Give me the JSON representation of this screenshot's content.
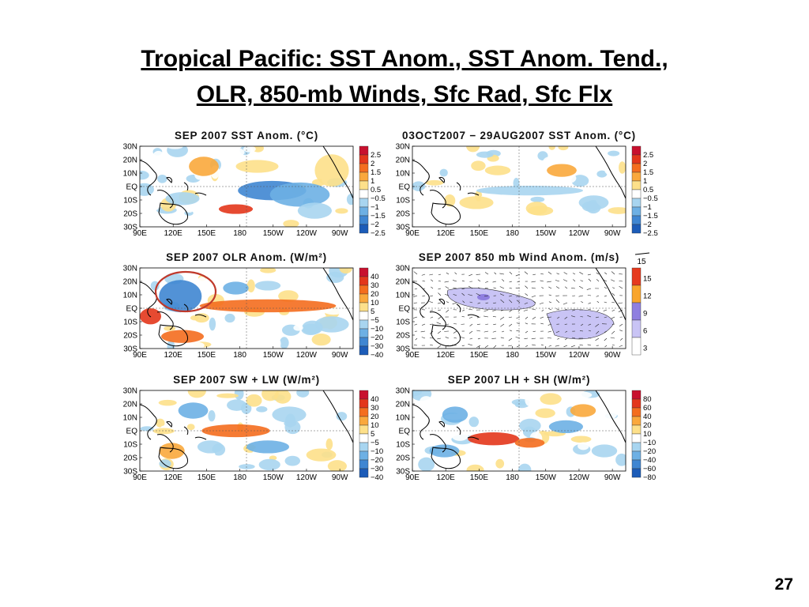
{
  "slide": {
    "title_line1": "Tropical Pacific: SST Anom., SST Anom. Tend.,",
    "title_line2": "OLR, 850-mb Winds, Sfc Rad, Sfc Flx",
    "page_number": "27"
  },
  "axes": {
    "lat_labels": [
      "30N",
      "20N",
      "10N",
      "EQ",
      "10S",
      "20S",
      "30S"
    ],
    "lon_labels": [
      "90E",
      "120E",
      "150E",
      "180",
      "150W",
      "120W",
      "90W"
    ]
  },
  "panels": [
    {
      "id": "sst",
      "title": "SEP 2007 SST Anom. (°C)",
      "colorbar": [
        "2.5",
        "2",
        "1.5",
        "1",
        "0.5",
        "−0.5",
        "−1",
        "−1.5",
        "−2",
        "−2.5"
      ],
      "colors": [
        "#c8102e",
        "#e3361b",
        "#f46d1e",
        "#faa83c",
        "#fde08a",
        "#ffffff",
        "#a8d5f0",
        "#6db0e4",
        "#3f86d2",
        "#1c5cb8"
      ]
    },
    {
      "id": "sst-tend",
      "title": "03OCT2007 − 29AUG2007 SST Anom. (°C)",
      "colorbar": [
        "2.5",
        "2",
        "1.5",
        "1",
        "0.5",
        "−0.5",
        "−1",
        "−1.5",
        "−2",
        "−2.5"
      ],
      "colors": [
        "#c8102e",
        "#e3361b",
        "#f46d1e",
        "#faa83c",
        "#fde08a",
        "#ffffff",
        "#a8d5f0",
        "#6db0e4",
        "#3f86d2",
        "#1c5cb8"
      ]
    },
    {
      "id": "olr",
      "title": "SEP 2007 OLR Anom. (W/m²)",
      "colorbar": [
        "40",
        "30",
        "20",
        "10",
        "5",
        "−5",
        "−10",
        "−20",
        "−30",
        "−40"
      ],
      "colors": [
        "#c8102e",
        "#e3361b",
        "#f46d1e",
        "#faa83c",
        "#fde08a",
        "#ffffff",
        "#a8d5f0",
        "#6db0e4",
        "#3f86d2",
        "#1c5cb8"
      ]
    },
    {
      "id": "wind",
      "title": "SEP 2007 850 mb Wind Anom. (m/s)",
      "reference_vector": "15",
      "colorbar": [
        "15",
        "12",
        "9",
        "6",
        "3"
      ],
      "colors": [
        "#e63a1e",
        "#f9a52c",
        "#8f7fe0",
        "#c9c4f5",
        "#ffffff"
      ]
    },
    {
      "id": "rad",
      "title": "SEP 2007 SW + LW (W/m²)",
      "colorbar": [
        "40",
        "30",
        "20",
        "10",
        "5",
        "−5",
        "−10",
        "−20",
        "−30",
        "−40"
      ],
      "colors": [
        "#c8102e",
        "#e3361b",
        "#f46d1e",
        "#faa83c",
        "#fde08a",
        "#ffffff",
        "#a8d5f0",
        "#6db0e4",
        "#3f86d2",
        "#1c5cb8"
      ]
    },
    {
      "id": "flx",
      "title": "SEP 2007 LH + SH (W/m²)",
      "colorbar": [
        "80",
        "60",
        "40",
        "20",
        "10",
        "−10",
        "−20",
        "−40",
        "−60",
        "−80"
      ],
      "colors": [
        "#c8102e",
        "#e3361b",
        "#f46d1e",
        "#faa83c",
        "#fde08a",
        "#ffffff",
        "#a8d5f0",
        "#6db0e4",
        "#3f86d2",
        "#1c5cb8"
      ]
    }
  ]
}
